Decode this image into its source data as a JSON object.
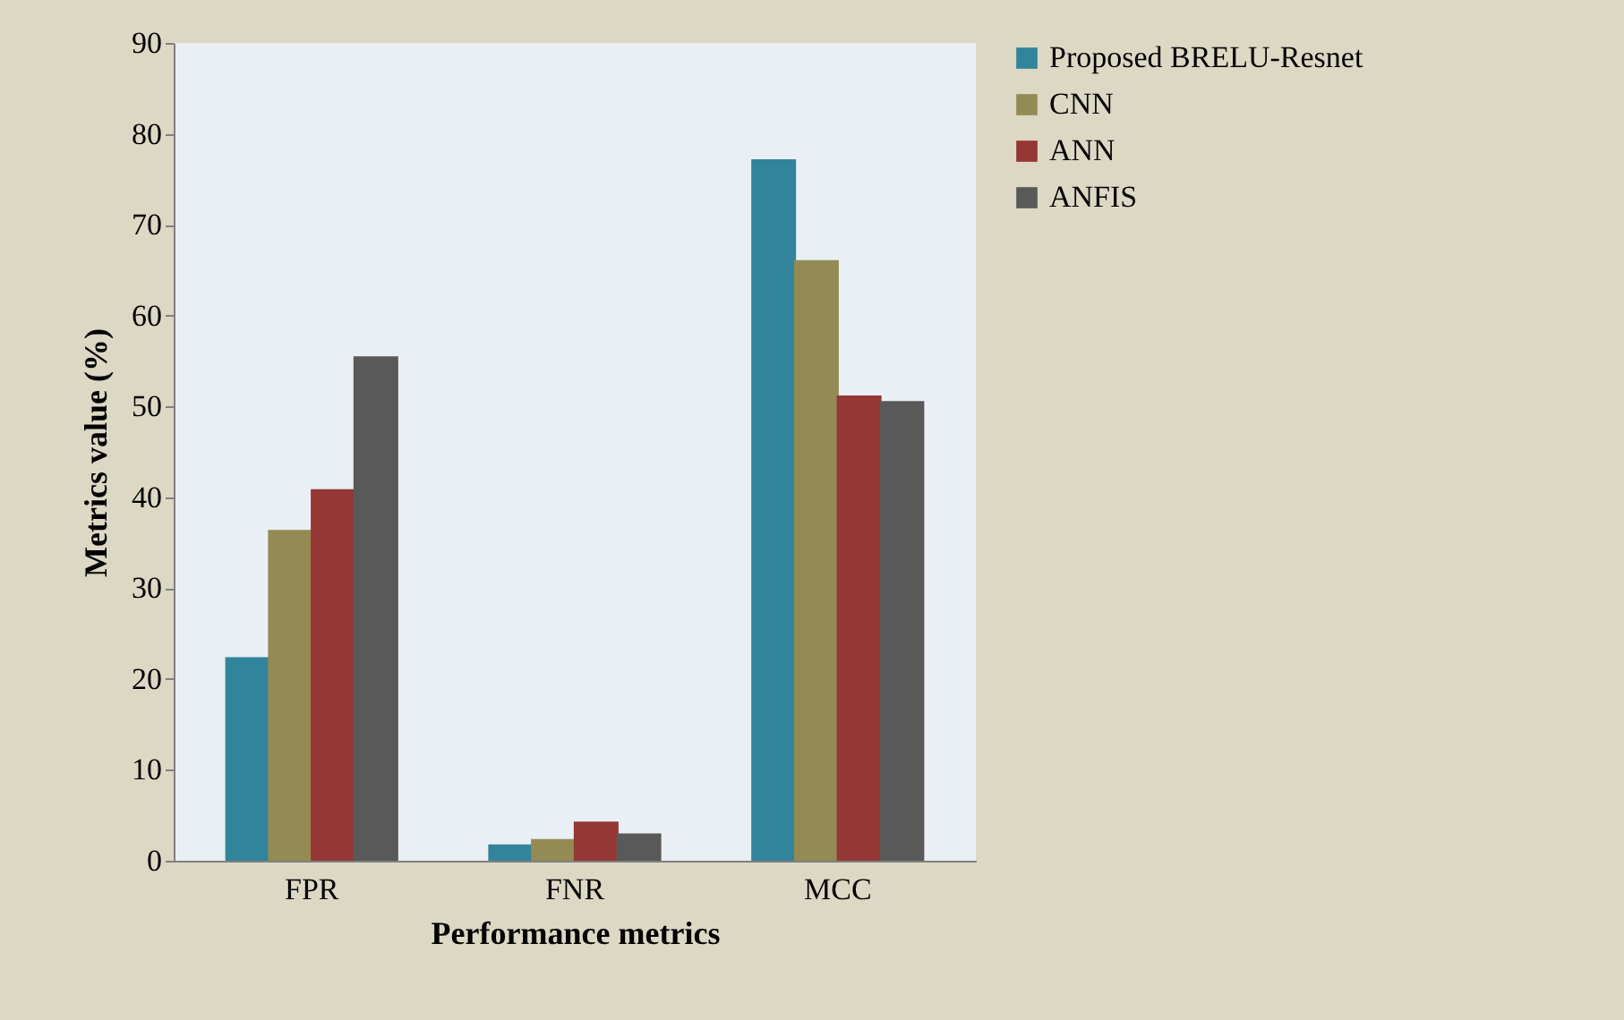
{
  "chart_data": {
    "type": "bar",
    "xlabel": "Performance  metrics",
    "ylabel": "Metrics value (%)",
    "categories": [
      "FPR",
      "FNR",
      "MCC"
    ],
    "series": [
      {
        "name": "Proposed BRELU-Resnet",
        "color": "#31849b",
        "values": [
          22.4,
          1.8,
          77.2
        ]
      },
      {
        "name": "CNN",
        "color": "#948a54",
        "values": [
          36.4,
          2.4,
          66.1
        ]
      },
      {
        "name": "ANN",
        "color": "#953735",
        "values": [
          40.9,
          4.3,
          51.2
        ]
      },
      {
        "name": "ANFIS",
        "color": "#595959",
        "values": [
          55.5,
          3.0,
          50.6
        ]
      }
    ],
    "ylim": [
      0,
      90
    ],
    "yticks": [
      0,
      10,
      20,
      30,
      40,
      50,
      60,
      70,
      80,
      90
    ],
    "grid": false,
    "legend": "right"
  }
}
